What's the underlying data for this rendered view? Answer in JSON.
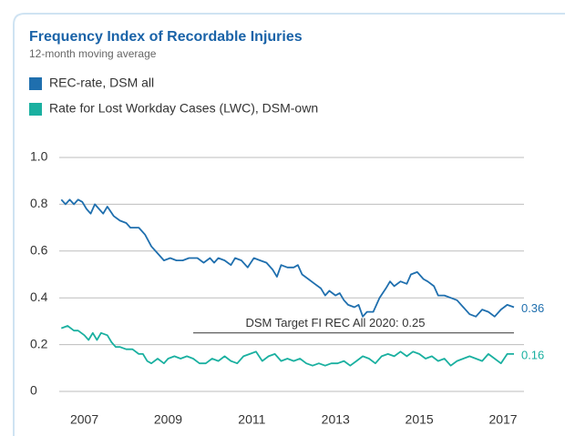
{
  "chart_data": {
    "type": "line",
    "title": "Frequency Index of Recordable Injuries",
    "subtitle": "12-month moving average",
    "xlim": [
      2006.4,
      2017.5
    ],
    "xticks": [
      2007,
      2009,
      2011,
      2013,
      2015,
      2017
    ],
    "ylim": [
      0,
      1
    ],
    "yticks": [
      {
        "value": 0,
        "label": "0"
      },
      {
        "value": 0.2,
        "label": "0.2"
      },
      {
        "value": 0.4,
        "label": "0.4"
      },
      {
        "value": 0.6,
        "label": "0.6"
      },
      {
        "value": 0.8,
        "label": "0.8"
      },
      {
        "value": 1,
        "label": "1.0"
      }
    ],
    "grid": true,
    "legend": "top-left",
    "target": {
      "value": 0.25,
      "label": "DSM Target FI REC All 2020: 0.25",
      "x": [
        2009.6,
        2017.26
      ]
    },
    "series": [
      {
        "name": "REC-rate, DSM all",
        "color": "#1f6fae",
        "last_label": "0.36",
        "x": [
          2006.45,
          2006.55,
          2006.65,
          2006.75,
          2006.85,
          2006.95,
          2007.05,
          2007.15,
          2007.25,
          2007.35,
          2007.45,
          2007.55,
          2007.7,
          2007.85,
          2008.0,
          2008.1,
          2008.3,
          2008.45,
          2008.6,
          2008.75,
          2008.9,
          2009.05,
          2009.2,
          2009.35,
          2009.5,
          2009.7,
          2009.85,
          2010.0,
          2010.1,
          2010.2,
          2010.35,
          2010.5,
          2010.6,
          2010.75,
          2010.9,
          2011.05,
          2011.2,
          2011.35,
          2011.5,
          2011.6,
          2011.7,
          2011.85,
          2012.0,
          2012.1,
          2012.2,
          2012.35,
          2012.5,
          2012.65,
          2012.75,
          2012.85,
          2013.0,
          2013.1,
          2013.2,
          2013.3,
          2013.45,
          2013.55,
          2013.65,
          2013.75,
          2013.9,
          2014.05,
          2014.2,
          2014.3,
          2014.4,
          2014.55,
          2014.7,
          2014.8,
          2014.95,
          2015.1,
          2015.2,
          2015.35,
          2015.45,
          2015.6,
          2015.75,
          2015.9,
          2016.05,
          2016.2,
          2016.35,
          2016.5,
          2016.65,
          2016.8,
          2016.95,
          2017.1,
          2017.26
        ],
        "values": [
          0.82,
          0.8,
          0.82,
          0.8,
          0.82,
          0.81,
          0.78,
          0.76,
          0.8,
          0.78,
          0.76,
          0.79,
          0.75,
          0.73,
          0.72,
          0.7,
          0.7,
          0.67,
          0.62,
          0.59,
          0.56,
          0.57,
          0.56,
          0.56,
          0.57,
          0.57,
          0.55,
          0.57,
          0.55,
          0.57,
          0.56,
          0.54,
          0.57,
          0.56,
          0.53,
          0.57,
          0.56,
          0.55,
          0.52,
          0.49,
          0.54,
          0.53,
          0.53,
          0.54,
          0.5,
          0.48,
          0.46,
          0.44,
          0.41,
          0.43,
          0.41,
          0.42,
          0.39,
          0.37,
          0.36,
          0.37,
          0.32,
          0.34,
          0.34,
          0.4,
          0.44,
          0.47,
          0.45,
          0.47,
          0.46,
          0.5,
          0.51,
          0.48,
          0.47,
          0.45,
          0.41,
          0.41,
          0.4,
          0.39,
          0.36,
          0.33,
          0.32,
          0.35,
          0.34,
          0.32,
          0.35,
          0.37,
          0.36
        ]
      },
      {
        "name": "Rate for Lost Workday Cases (LWC), DSM-own",
        "color": "#1ab0a0",
        "last_label": "0.16",
        "x": [
          2006.45,
          2006.6,
          2006.75,
          2006.85,
          2007.0,
          2007.1,
          2007.2,
          2007.3,
          2007.4,
          2007.55,
          2007.65,
          2007.75,
          2007.85,
          2008.0,
          2008.15,
          2008.3,
          2008.4,
          2008.5,
          2008.6,
          2008.75,
          2008.9,
          2009.0,
          2009.15,
          2009.3,
          2009.45,
          2009.6,
          2009.75,
          2009.9,
          2010.05,
          2010.2,
          2010.35,
          2010.5,
          2010.65,
          2010.8,
          2010.95,
          2011.1,
          2011.25,
          2011.4,
          2011.55,
          2011.7,
          2011.85,
          2012.0,
          2012.15,
          2012.3,
          2012.45,
          2012.6,
          2012.75,
          2012.9,
          2013.05,
          2013.2,
          2013.35,
          2013.5,
          2013.65,
          2013.8,
          2013.95,
          2014.1,
          2014.25,
          2014.4,
          2014.55,
          2014.7,
          2014.85,
          2015.0,
          2015.15,
          2015.3,
          2015.45,
          2015.6,
          2015.75,
          2015.9,
          2016.05,
          2016.2,
          2016.35,
          2016.5,
          2016.65,
          2016.8,
          2016.95,
          2017.1,
          2017.26
        ],
        "values": [
          0.27,
          0.28,
          0.26,
          0.26,
          0.24,
          0.22,
          0.25,
          0.22,
          0.25,
          0.24,
          0.21,
          0.19,
          0.19,
          0.18,
          0.18,
          0.16,
          0.16,
          0.13,
          0.12,
          0.14,
          0.12,
          0.14,
          0.15,
          0.14,
          0.15,
          0.14,
          0.12,
          0.12,
          0.14,
          0.13,
          0.15,
          0.13,
          0.12,
          0.15,
          0.16,
          0.17,
          0.13,
          0.15,
          0.16,
          0.13,
          0.14,
          0.13,
          0.14,
          0.12,
          0.11,
          0.12,
          0.11,
          0.12,
          0.12,
          0.13,
          0.11,
          0.13,
          0.15,
          0.14,
          0.12,
          0.15,
          0.16,
          0.15,
          0.17,
          0.15,
          0.17,
          0.16,
          0.14,
          0.15,
          0.13,
          0.14,
          0.11,
          0.13,
          0.14,
          0.15,
          0.14,
          0.13,
          0.16,
          0.14,
          0.12,
          0.16,
          0.16
        ]
      }
    ]
  }
}
